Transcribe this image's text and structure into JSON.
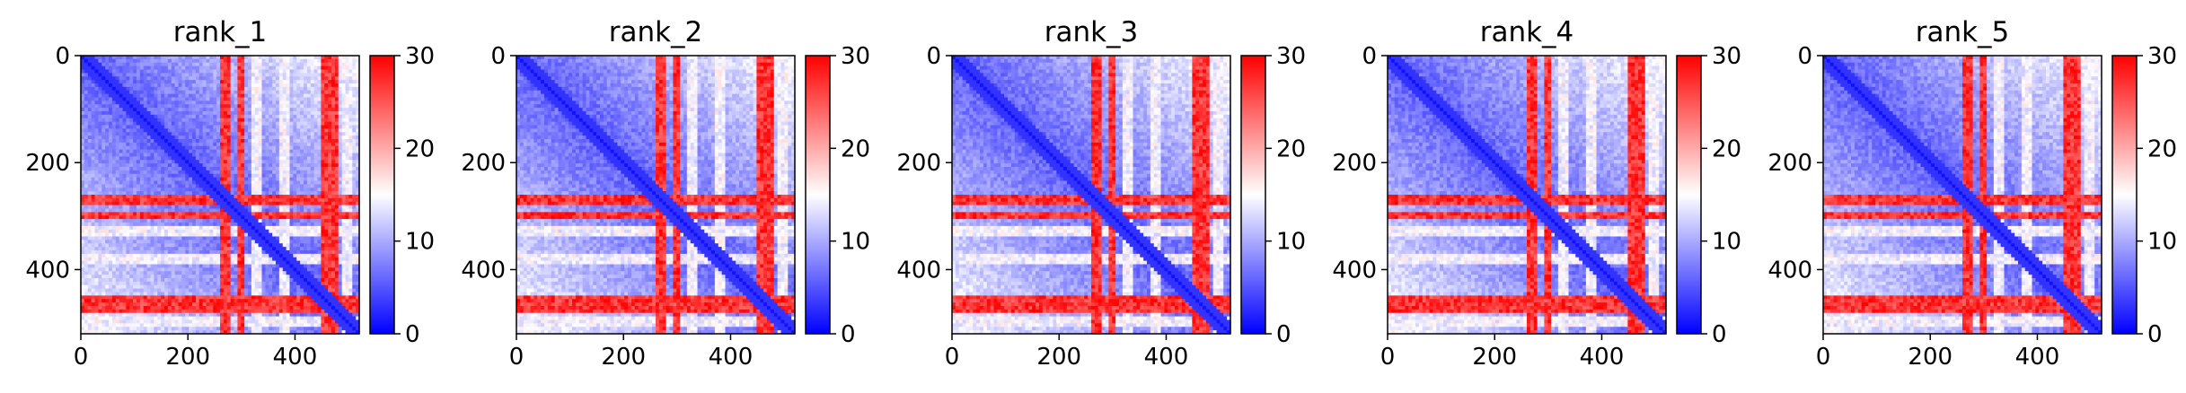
{
  "chart_data": [
    {
      "type": "heatmap",
      "title": "rank_1",
      "xlabel": "",
      "ylabel": "",
      "xlim": [
        0,
        520
      ],
      "ylim": [
        520,
        0
      ],
      "x_ticks": [
        0,
        200,
        400
      ],
      "y_ticks": [
        0,
        200,
        400
      ],
      "colorbar": {
        "range": [
          0,
          30
        ],
        "ticks": [
          0,
          10,
          20,
          30
        ],
        "colormap": "bwr"
      },
      "matrix_size": 520,
      "red_bands": [
        [
          262,
          282
        ],
        [
          292,
          305
        ],
        [
          450,
          480
        ]
      ],
      "white_bands": [
        [
          320,
          335
        ],
        [
          372,
          388
        ],
        [
          485,
          510
        ]
      ],
      "variant": 1
    },
    {
      "type": "heatmap",
      "title": "rank_2",
      "xlabel": "",
      "ylabel": "",
      "xlim": [
        0,
        520
      ],
      "ylim": [
        520,
        0
      ],
      "x_ticks": [
        0,
        200,
        400
      ],
      "y_ticks": [
        0,
        200,
        400
      ],
      "colorbar": {
        "range": [
          0,
          30
        ],
        "ticks": [
          0,
          10,
          20,
          30
        ],
        "colormap": "bwr"
      },
      "matrix_size": 520,
      "red_bands": [
        [
          262,
          282
        ],
        [
          292,
          305
        ],
        [
          450,
          480
        ]
      ],
      "white_bands": [
        [
          320,
          335
        ],
        [
          372,
          388
        ],
        [
          485,
          510
        ]
      ],
      "variant": 2
    },
    {
      "type": "heatmap",
      "title": "rank_3",
      "xlabel": "",
      "ylabel": "",
      "xlim": [
        0,
        520
      ],
      "ylim": [
        520,
        0
      ],
      "x_ticks": [
        0,
        200,
        400
      ],
      "y_ticks": [
        0,
        200,
        400
      ],
      "colorbar": {
        "range": [
          0,
          30
        ],
        "ticks": [
          0,
          10,
          20,
          30
        ],
        "colormap": "bwr"
      },
      "matrix_size": 520,
      "red_bands": [
        [
          262,
          282
        ],
        [
          292,
          305
        ],
        [
          450,
          480
        ]
      ],
      "white_bands": [
        [
          320,
          335
        ],
        [
          372,
          388
        ],
        [
          485,
          510
        ]
      ],
      "variant": 3
    },
    {
      "type": "heatmap",
      "title": "rank_4",
      "xlabel": "",
      "ylabel": "",
      "xlim": [
        0,
        520
      ],
      "ylim": [
        520,
        0
      ],
      "x_ticks": [
        0,
        200,
        400
      ],
      "y_ticks": [
        0,
        200,
        400
      ],
      "colorbar": {
        "range": [
          0,
          30
        ],
        "ticks": [
          0,
          10,
          20,
          30
        ],
        "colormap": "bwr"
      },
      "matrix_size": 520,
      "red_bands": [
        [
          262,
          282
        ],
        [
          292,
          305
        ],
        [
          450,
          480
        ]
      ],
      "white_bands": [
        [
          320,
          335
        ],
        [
          372,
          388
        ],
        [
          485,
          510
        ]
      ],
      "variant": 4
    },
    {
      "type": "heatmap",
      "title": "rank_5",
      "xlabel": "",
      "ylabel": "",
      "xlim": [
        0,
        520
      ],
      "ylim": [
        520,
        0
      ],
      "x_ticks": [
        0,
        200,
        400
      ],
      "y_ticks": [
        0,
        200,
        400
      ],
      "colorbar": {
        "range": [
          0,
          30
        ],
        "ticks": [
          0,
          10,
          20,
          30
        ],
        "colormap": "bwr"
      },
      "matrix_size": 520,
      "red_bands": [
        [
          262,
          282
        ],
        [
          292,
          305
        ],
        [
          450,
          480
        ]
      ],
      "white_bands": [
        [
          320,
          335
        ],
        [
          372,
          388
        ],
        [
          485,
          510
        ]
      ],
      "variant": 5
    }
  ]
}
